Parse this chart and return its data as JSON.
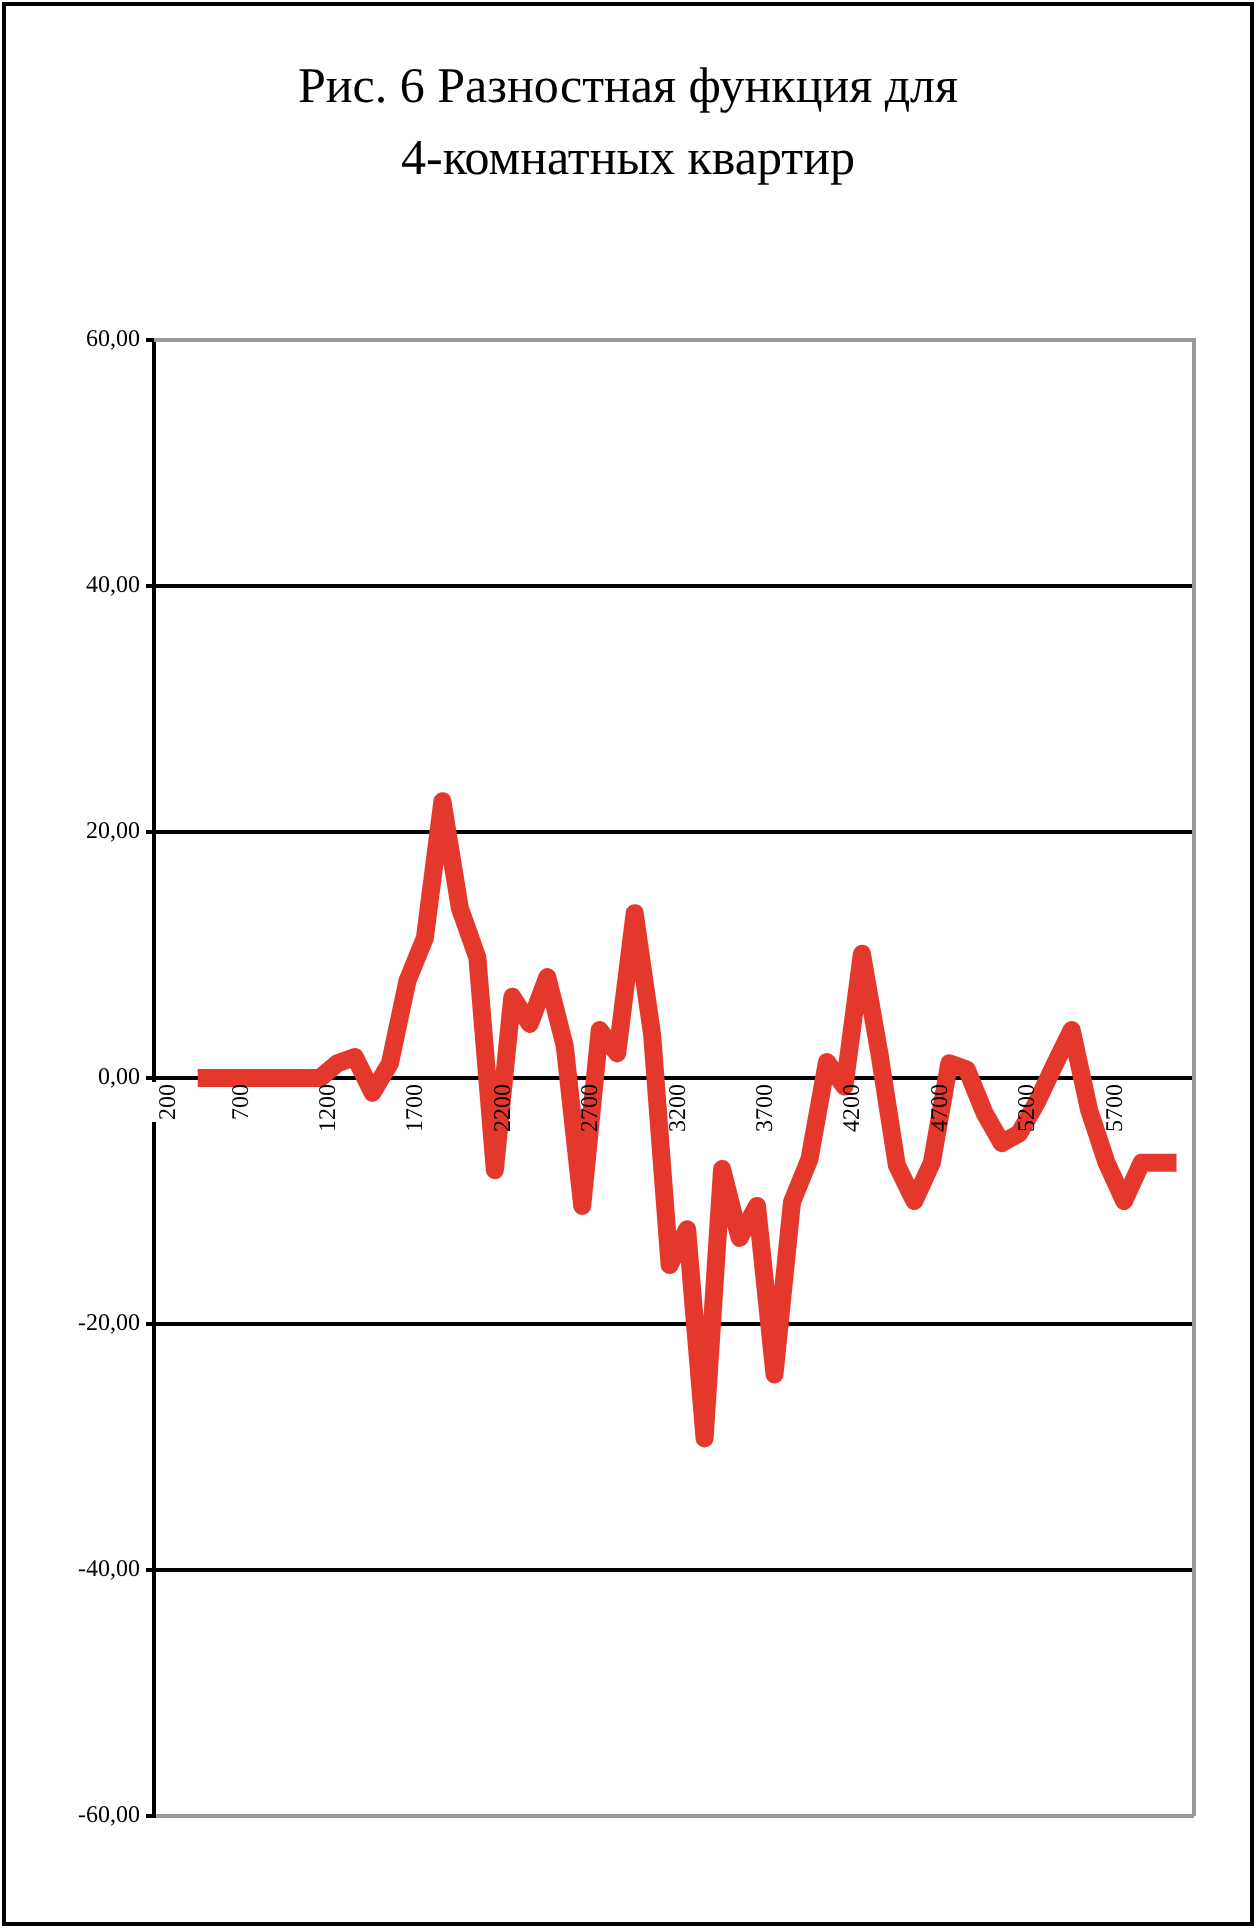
{
  "chart_data": {
    "type": "line",
    "title": "Рис. 6 Разностная функция для 4-комнатных квартир",
    "x": [
      450,
      550,
      650,
      750,
      850,
      950,
      1050,
      1150,
      1250,
      1350,
      1450,
      1550,
      1650,
      1750,
      1850,
      1950,
      2050,
      2150,
      2250,
      2350,
      2450,
      2550,
      2650,
      2750,
      2850,
      2950,
      3050,
      3150,
      3250,
      3350,
      3450,
      3550,
      3650,
      3750,
      3850,
      3950,
      4050,
      4150,
      4250,
      4350,
      4450,
      4550,
      4650,
      4750,
      4850,
      4950,
      5050,
      5150,
      5250,
      5350,
      5450,
      5550,
      5650,
      5750,
      5850,
      5950,
      6050
    ],
    "values": [
      0,
      0,
      0,
      0,
      0,
      0,
      0,
      0,
      1.2,
      1.7,
      -1.2,
      1.2,
      7.9,
      11.4,
      22.5,
      13.8,
      9.8,
      -7.5,
      6.6,
      4.4,
      8.2,
      2.6,
      -10.4,
      3.9,
      2.0,
      13.4,
      3.5,
      -15.2,
      -12.3,
      -29.3,
      -7.4,
      -13,
      -10.4,
      -24.1,
      -10.1,
      -6.6,
      1.3,
      -0.7,
      10.1,
      2,
      -7.1,
      -10,
      -6.9,
      1.2,
      0.7,
      -2.8,
      -5.3,
      -4.5,
      -2.0,
      1.0,
      3.9,
      -2.6,
      -6.9,
      -10,
      -6.9,
      -6.9,
      -6.9
    ],
    "color": "#e5382d",
    "xlim": [
      200,
      6150
    ],
    "xticks": [
      200,
      700,
      1200,
      1700,
      2200,
      2700,
      3200,
      3700,
      4200,
      4700,
      5200,
      5700
    ],
    "ylim": [
      -60,
      60
    ],
    "yticks": [
      {
        "value": -60,
        "label": "-60,00"
      },
      {
        "value": -40,
        "label": "-40,00"
      },
      {
        "value": -20,
        "label": "-20,00"
      },
      {
        "value": 0,
        "label": "0,00"
      },
      {
        "value": 20,
        "label": "20,00"
      },
      {
        "value": 40,
        "label": "40,00"
      },
      {
        "value": 60,
        "label": "60,00"
      }
    ],
    "grid": "y",
    "legend": false,
    "marker": "none",
    "line_style": "solid"
  }
}
